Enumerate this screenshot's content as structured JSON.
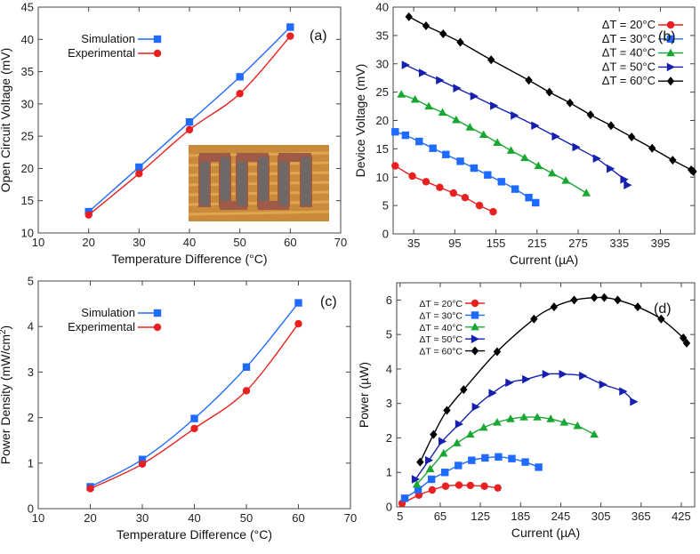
{
  "chart_data": [
    {
      "id": "a",
      "type": "line",
      "panel_label": "(a)",
      "xlabel": "Temperature Difference (°C)",
      "ylabel": "Open Circuit Voltage (mV)",
      "xlim": [
        10,
        70
      ],
      "ylim": [
        10,
        45
      ],
      "xticks": [
        10,
        20,
        30,
        40,
        50,
        60,
        70
      ],
      "yticks": [
        10,
        15,
        20,
        25,
        30,
        35,
        40,
        45
      ],
      "legend_position": "top-left",
      "inset_photo": "thermoelectric device photo",
      "series": [
        {
          "name": "Simulation",
          "color": "#1f6bff",
          "marker": "square",
          "x": [
            20,
            30,
            40,
            50,
            60
          ],
          "y": [
            13.3,
            20.2,
            27.2,
            34.2,
            41.9
          ]
        },
        {
          "name": "Experimental",
          "color": "#e8201f",
          "marker": "circle",
          "x": [
            20,
            30,
            40,
            50,
            60
          ],
          "y": [
            12.8,
            19.2,
            26.0,
            31.6,
            40.5
          ]
        }
      ]
    },
    {
      "id": "b",
      "type": "line",
      "panel_label": "(b)",
      "xlabel": "Current (µA)",
      "ylabel": "Device Voltage (mV)",
      "xlim": [
        5,
        445
      ],
      "ylim": [
        0,
        40
      ],
      "xticks": [
        35,
        95,
        155,
        215,
        275,
        335,
        395
      ],
      "yticks": [
        0,
        5,
        10,
        15,
        20,
        25,
        30,
        35,
        40
      ],
      "legend_position": "top-right",
      "series": [
        {
          "name": "ΔT = 20°C",
          "color": "#e8201f",
          "marker": "circle",
          "x": [
            8,
            33,
            53,
            73,
            93,
            110,
            131,
            151
          ],
          "y": [
            12.0,
            10.2,
            9.2,
            8.2,
            7.2,
            6.4,
            5.0,
            3.9
          ]
        },
        {
          "name": "ΔT = 30°C",
          "color": "#1f6bff",
          "marker": "square",
          "x": [
            8,
            23,
            43,
            63,
            82,
            103,
            123,
            143,
            163,
            183,
            203,
            213
          ],
          "y": [
            18.0,
            17.4,
            16.3,
            15.1,
            14.0,
            12.8,
            11.6,
            10.4,
            9.2,
            7.9,
            6.4,
            5.5
          ]
        },
        {
          "name": "ΔT = 40°C",
          "color": "#18a832",
          "marker": "triangle",
          "x": [
            17,
            37,
            57,
            77,
            97,
            117,
            137,
            157,
            177,
            197,
            217,
            237,
            257,
            287
          ],
          "y": [
            24.6,
            23.7,
            22.5,
            21.4,
            20.1,
            18.8,
            17.5,
            16.1,
            14.7,
            13.4,
            12.0,
            10.7,
            9.4,
            7.2
          ]
        },
        {
          "name": "ΔT = 50°C",
          "color": "#1620b0",
          "marker": "tri-right",
          "x": [
            23,
            48,
            73,
            98,
            123,
            152,
            182,
            212,
            242,
            272,
            302,
            322,
            342,
            347
          ],
          "y": [
            29.8,
            28.4,
            27.1,
            25.7,
            24.3,
            22.6,
            20.9,
            19.1,
            17.2,
            15.3,
            13.3,
            11.5,
            9.6,
            8.6
          ]
        },
        {
          "name": "ΔT = 60°C",
          "color": "#000000",
          "marker": "diamond",
          "x": [
            28,
            53,
            78,
            103,
            148,
            203,
            233,
            263,
            293,
            323,
            353,
            383,
            413,
            440,
            443
          ],
          "y": [
            38.3,
            36.7,
            35.3,
            33.8,
            30.7,
            27.1,
            25.0,
            23.1,
            21.0,
            19.1,
            17.1,
            15.1,
            13.0,
            11.3,
            11.0
          ]
        }
      ]
    },
    {
      "id": "c",
      "type": "line",
      "panel_label": "(c)",
      "xlabel": "Temperature Difference (°C)",
      "ylabel": "Power Density (mW/cm",
      "ylabel_sup": "2",
      "ylabel_end": ")",
      "xlim": [
        10,
        70
      ],
      "ylim": [
        0,
        5
      ],
      "xticks": [
        10,
        20,
        30,
        40,
        50,
        60,
        70
      ],
      "yticks": [
        0,
        1,
        2,
        3,
        4,
        5
      ],
      "legend_position": "top-left",
      "series": [
        {
          "name": "Simulation",
          "color": "#1f6bff",
          "marker": "square",
          "x": [
            20,
            30,
            40,
            50,
            60
          ],
          "y": [
            0.48,
            1.08,
            1.98,
            3.11,
            4.52
          ]
        },
        {
          "name": "Experimental",
          "color": "#e8201f",
          "marker": "circle",
          "x": [
            20,
            30,
            40,
            50,
            60
          ],
          "y": [
            0.44,
            0.98,
            1.76,
            2.59,
            4.06
          ]
        }
      ]
    },
    {
      "id": "d",
      "type": "line",
      "panel_label": "(d)",
      "xlabel": "Current (µA)",
      "ylabel": "Power (µW)",
      "xlim": [
        0,
        445
      ],
      "ylim": [
        0,
        6.5
      ],
      "xticks": [
        5,
        65,
        125,
        185,
        245,
        305,
        365,
        425
      ],
      "yticks": [
        0,
        1,
        2,
        3,
        4,
        5,
        6
      ],
      "legend_position": "top-left",
      "series": [
        {
          "name": "ΔT = 20°C",
          "color": "#e8201f",
          "marker": "circle",
          "x": [
            8,
            33,
            53,
            73,
            93,
            110,
            131,
            151
          ],
          "y": [
            0.1,
            0.34,
            0.49,
            0.6,
            0.63,
            0.62,
            0.6,
            0.55
          ]
        },
        {
          "name": "ΔT = 30°C",
          "color": "#1f6bff",
          "marker": "square",
          "x": [
            12,
            32,
            52,
            72,
            92,
            112,
            132,
            152,
            172,
            192,
            212
          ],
          "y": [
            0.25,
            0.5,
            0.8,
            1.0,
            1.2,
            1.35,
            1.42,
            1.45,
            1.4,
            1.3,
            1.15
          ]
        },
        {
          "name": "ΔT = 40°C",
          "color": "#18a832",
          "marker": "triangle",
          "x": [
            30,
            50,
            70,
            90,
            110,
            130,
            150,
            170,
            190,
            210,
            230,
            250,
            270,
            295
          ],
          "y": [
            0.65,
            1.1,
            1.55,
            1.85,
            2.1,
            2.3,
            2.45,
            2.55,
            2.6,
            2.6,
            2.55,
            2.45,
            2.35,
            2.1
          ]
        },
        {
          "name": "ΔT = 50°C",
          "color": "#1620b0",
          "marker": "tri-right",
          "x": [
            28,
            48,
            68,
            93,
            118,
            143,
            168,
            193,
            223,
            248,
            278,
            308,
            338,
            354
          ],
          "y": [
            0.8,
            1.35,
            1.9,
            2.4,
            2.9,
            3.3,
            3.6,
            3.7,
            3.85,
            3.85,
            3.8,
            3.55,
            3.35,
            3.05
          ]
        },
        {
          "name": "ΔT = 60°C",
          "color": "#000000",
          "marker": "diamond",
          "x": [
            35,
            55,
            75,
            100,
            150,
            205,
            235,
            265,
            295,
            310,
            330,
            360,
            395,
            428,
            433
          ],
          "y": [
            1.3,
            2.1,
            2.8,
            3.4,
            4.5,
            5.45,
            5.8,
            6.0,
            6.07,
            6.07,
            6.0,
            5.8,
            5.45,
            4.9,
            4.75
          ]
        }
      ]
    }
  ]
}
